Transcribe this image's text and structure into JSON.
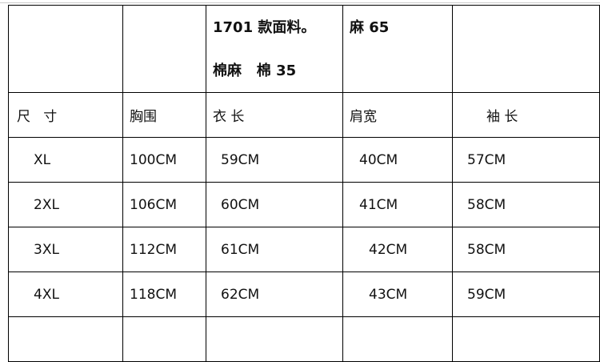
{
  "header": {
    "fabric_line1": "1701 款面料。",
    "fabric_line2": "棉麻   棉 35",
    "linen": "麻 65"
  },
  "columns": [
    "尺   寸",
    "胸围",
    "衣 长",
    "肩宽",
    "袖 长"
  ],
  "rows": [
    [
      "XL",
      "100CM",
      "59CM",
      "40CM",
      "57CM"
    ],
    [
      "2XL",
      "106CM",
      "60CM",
      "41CM",
      "58CM"
    ],
    [
      "3XL",
      "112CM",
      "61CM",
      "42CM",
      "58CM"
    ],
    [
      "4XL",
      "118CM",
      "62CM",
      "43CM",
      "59CM"
    ]
  ]
}
